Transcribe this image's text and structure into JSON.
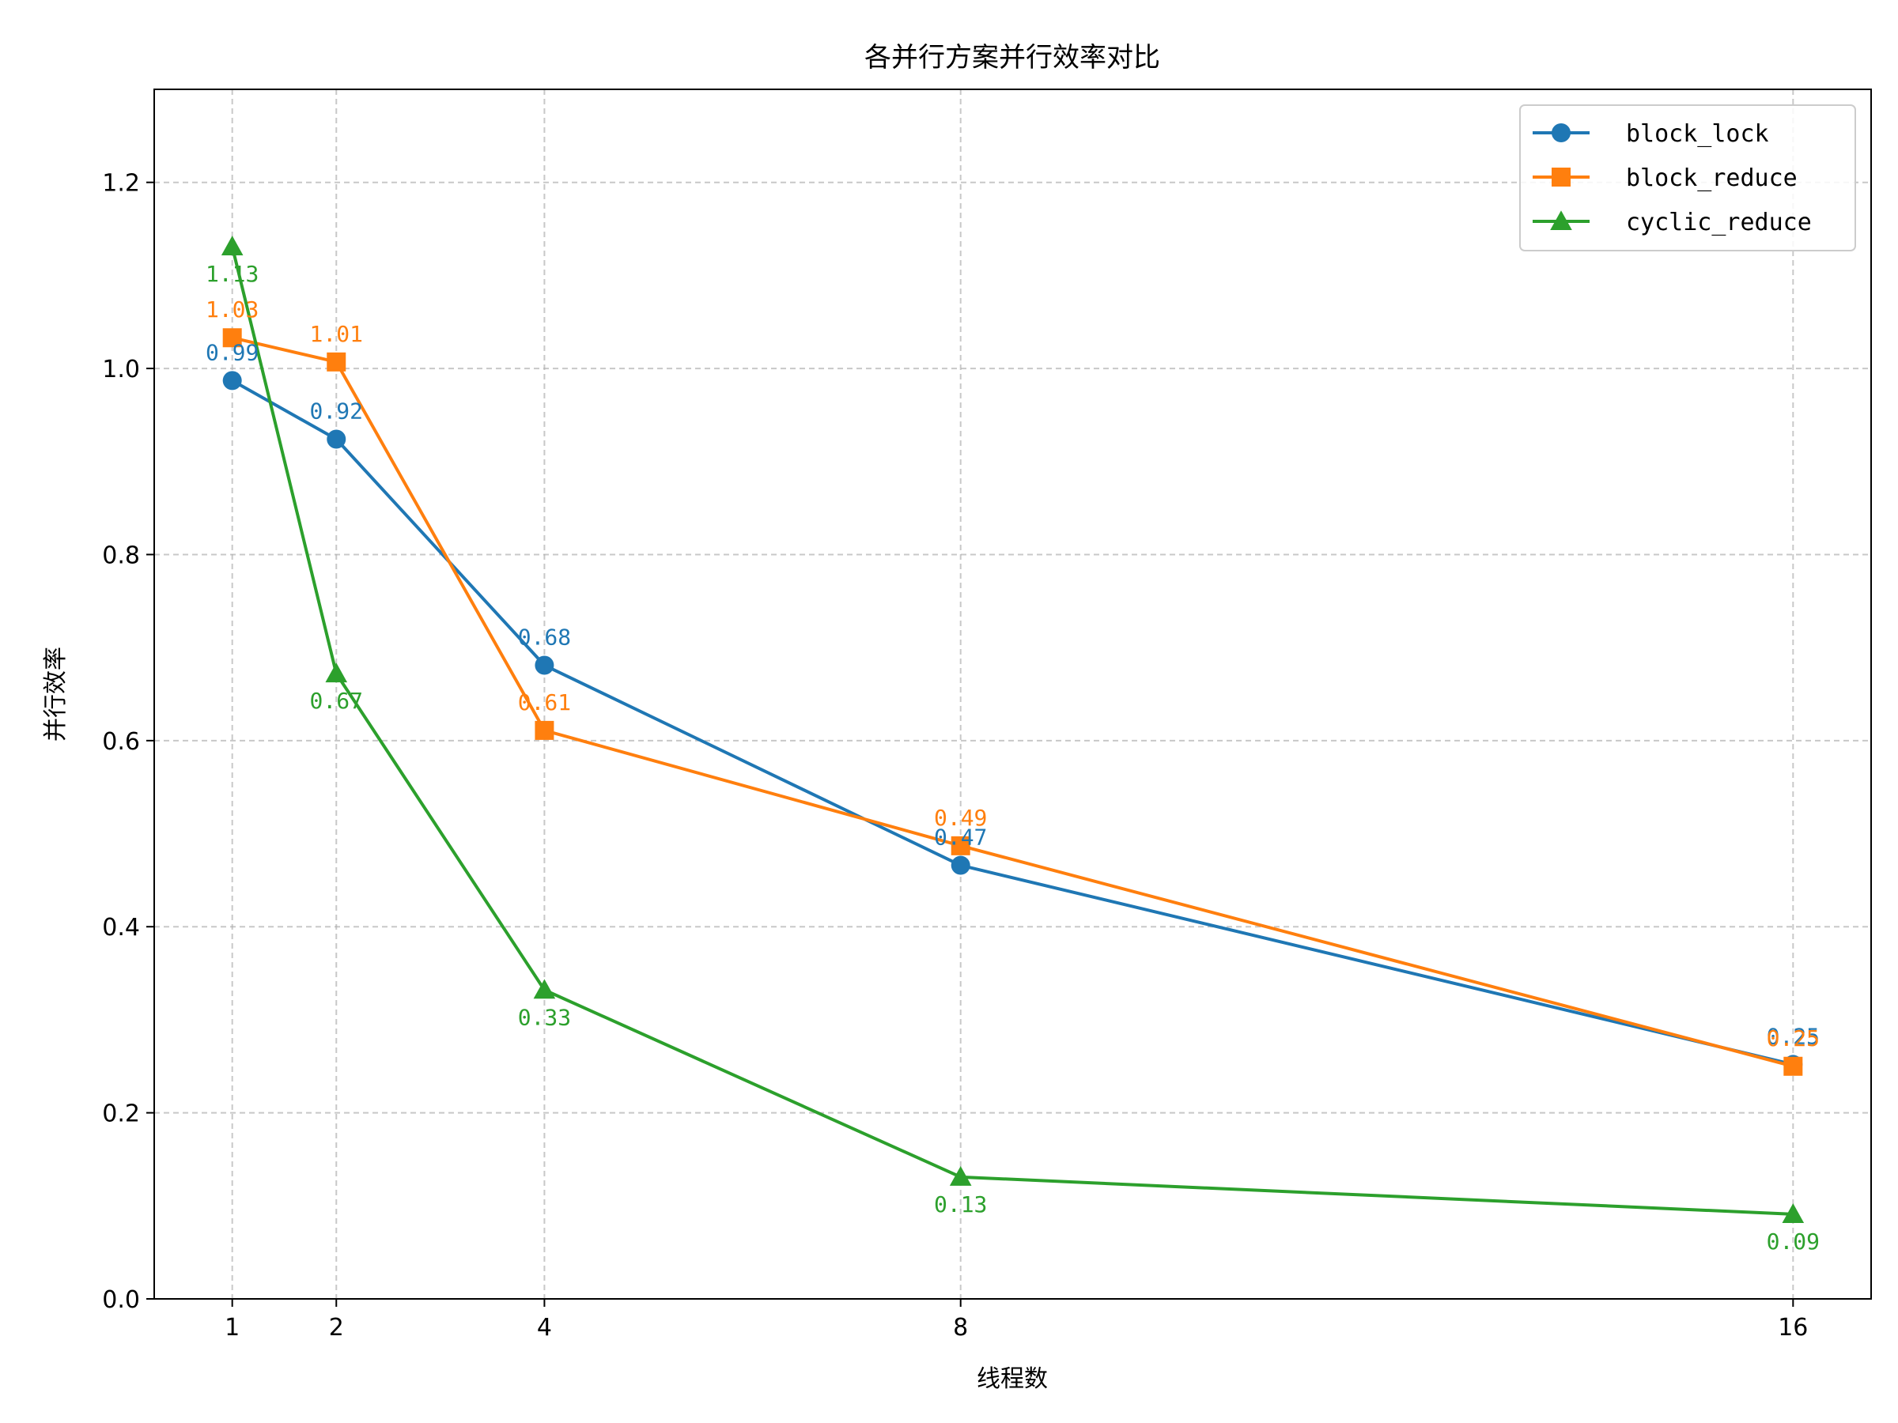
{
  "chart_data": {
    "type": "line",
    "title": "各并行方案并行效率对比",
    "xlabel": "线程数",
    "ylabel": "并行效率",
    "x": [
      1,
      2,
      4,
      8,
      16
    ],
    "xticks": [
      "1",
      "2",
      "4",
      "8",
      "16"
    ],
    "xlim": [
      0.25,
      16.75
    ],
    "ylim": [
      0.0,
      1.3
    ],
    "yticks": [
      "0.0",
      "0.2",
      "0.4",
      "0.6",
      "0.8",
      "1.0",
      "1.2"
    ],
    "grid": true,
    "legend_position": "top-right",
    "series": [
      {
        "name": "block_lock",
        "color": "#1f77b4",
        "marker": "circle",
        "values": [
          0.987,
          0.924,
          0.681,
          0.466,
          0.252
        ],
        "labels": [
          "0.99",
          "0.92",
          "0.68",
          "0.47",
          "0.25"
        ],
        "label_position": "above"
      },
      {
        "name": "block_reduce",
        "color": "#ff7f0e",
        "marker": "square",
        "values": [
          1.033,
          1.007,
          0.611,
          0.487,
          0.25
        ],
        "labels": [
          "1.03",
          "1.01",
          "0.61",
          "0.49",
          "0.25"
        ],
        "label_position": "above"
      },
      {
        "name": "cyclic_reduce",
        "color": "#2ca02c",
        "marker": "triangle",
        "values": [
          1.131,
          0.672,
          0.332,
          0.131,
          0.091
        ],
        "labels": [
          "1.13",
          "0.67",
          "0.33",
          "0.13",
          "0.09"
        ],
        "label_position": "below"
      }
    ]
  }
}
